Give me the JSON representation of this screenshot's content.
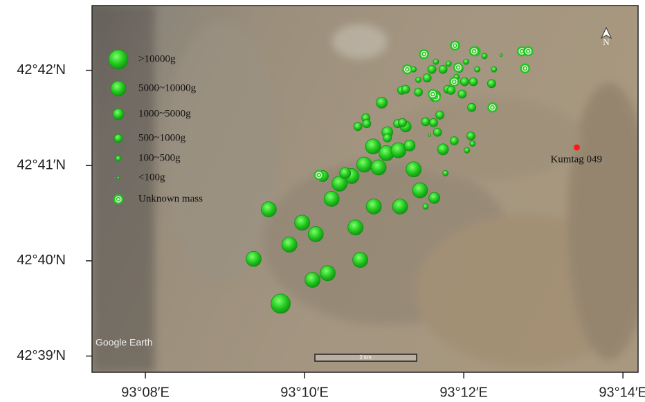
{
  "chart_data": {
    "type": "scatter",
    "xlim": [
      7.33,
      14.19
    ],
    "ylim": [
      38.83,
      42.68
    ],
    "xticks": [
      {
        "value": 8,
        "label": "93°08′E"
      },
      {
        "value": 10,
        "label": "93°10′E"
      },
      {
        "value": 12,
        "label": "93°12′E"
      },
      {
        "value": 14,
        "label": "93°14′E"
      }
    ],
    "yticks": [
      {
        "value": 39,
        "label": "42°39′N"
      },
      {
        "value": 40,
        "label": "42°40′N"
      },
      {
        "value": 41,
        "label": "42°41′N"
      },
      {
        "value": 42,
        "label": "42°42′N"
      }
    ],
    "series": [
      {
        "name": ">10000g",
        "color": "#22c322",
        "x": [
          9.7
        ],
        "values": [
          39.55
        ]
      },
      {
        "name": "5000~10000g",
        "color": "#22c322",
        "x": [
          9.36,
          9.55,
          9.97,
          9.81,
          10.14,
          10.1,
          10.29,
          10.7,
          10.64,
          10.34,
          10.87,
          11.2,
          11.37,
          11.45,
          10.75,
          10.93,
          10.59,
          10.44,
          10.86,
          11.03,
          11.18
        ],
        "values": [
          40.02,
          40.54,
          40.4,
          40.17,
          40.28,
          39.8,
          39.87,
          40.01,
          40.35,
          40.65,
          40.57,
          40.57,
          40.96,
          40.74,
          41.01,
          40.98,
          40.89,
          40.81,
          41.2,
          41.13,
          41.16
        ]
      },
      {
        "name": "1000~5000g",
        "color": "#22c322",
        "x": [
          10.97,
          11.04,
          11.32,
          11.74,
          11.64,
          11.27,
          10.51,
          11.63,
          10.23
        ],
        "values": [
          41.66,
          41.35,
          41.21,
          41.17,
          41.73,
          41.41,
          40.92,
          40.66,
          40.89
        ]
      },
      {
        "name": "500~1000g",
        "color": "#22c322",
        "x": [
          10.77,
          10.67,
          10.78,
          11.17,
          11.23,
          11.52,
          11.62,
          11.67,
          11.43,
          11.6,
          11.74,
          11.94,
          12.12,
          12.35,
          12.01,
          11.8,
          11.84,
          11.98,
          12.1,
          11.88,
          12.09,
          11.54,
          11.7,
          11.22,
          11.27,
          11.04
        ],
        "values": [
          41.5,
          41.41,
          41.44,
          41.44,
          41.45,
          41.46,
          41.45,
          41.35,
          41.77,
          42.01,
          42.01,
          42.02,
          41.88,
          41.86,
          41.88,
          41.8,
          41.79,
          41.75,
          41.61,
          41.26,
          41.31,
          41.92,
          41.53,
          41.79,
          41.8,
          41.29
        ]
      },
      {
        "name": "100~500g",
        "color": "#22c322",
        "x": [
          11.52,
          11.77,
          12.11,
          12.04,
          12.17,
          12.38,
          12.26,
          12.03,
          11.81,
          11.65,
          11.43,
          11.91,
          11.37
        ],
        "values": [
          40.57,
          40.92,
          41.23,
          41.16,
          42.01,
          42.01,
          42.15,
          42.09,
          42.07,
          42.09,
          41.9,
          41.93,
          42.01
        ]
      },
      {
        "name": "<100g",
        "color": "#22c322",
        "x": [
          12.47,
          11.57
        ],
        "values": [
          42.16,
          41.32
        ]
      },
      {
        "name": "Unknown mass",
        "color": "#22c322",
        "x": [
          11.5,
          11.89,
          12.15,
          12.73,
          12.81,
          12.77,
          12.36,
          11.93,
          11.29,
          12.13,
          11.65,
          11.61,
          10.18,
          11.88
        ],
        "values": [
          42.17,
          42.26,
          42.2,
          42.2,
          42.2,
          42.02,
          41.61,
          42.03,
          42.01,
          42.2,
          41.72,
          41.75,
          40.9,
          41.88
        ]
      }
    ],
    "point": {
      "name": "Kumtag 049",
      "x": 13.42,
      "y": 41.19,
      "color": "#ff1a1a"
    },
    "watermark": "Google Earth",
    "scale_label": "2 km",
    "north_label": "N"
  }
}
